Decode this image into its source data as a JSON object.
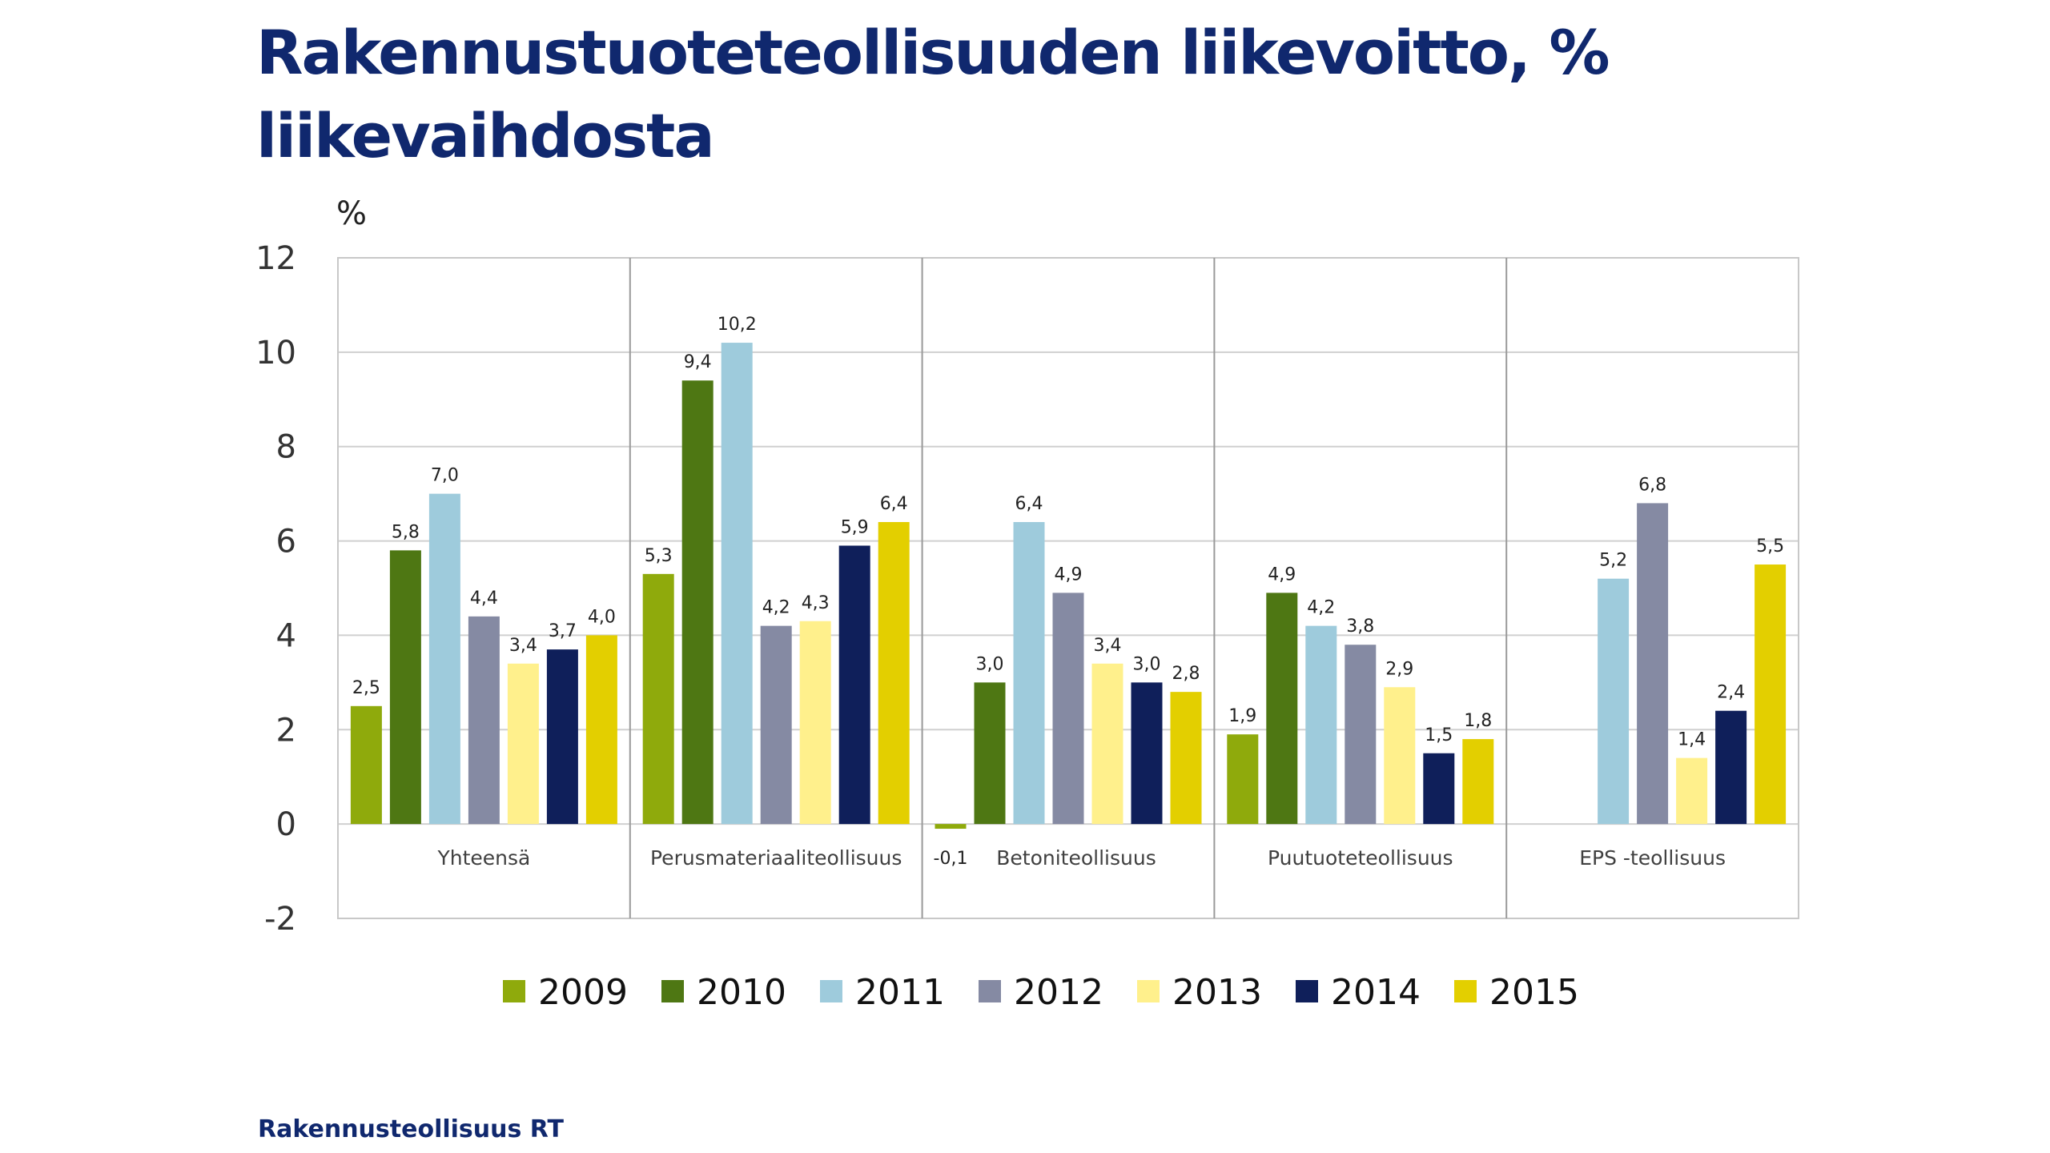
{
  "page": {
    "title": "Rakennustuoteteollisuuden liikevoitto, % liikevaihdosta",
    "footer": "Rakennusteollisuus RT"
  },
  "chart_data": {
    "type": "bar",
    "title": "Rakennustuoteteollisuuden liikevoitto, % liikevaihdosta",
    "ylabel": "%",
    "xlabel": "",
    "ylim": [
      -2,
      12
    ],
    "yticks": [
      "12",
      "10",
      "8",
      "6",
      "4",
      "2",
      "0",
      "-2"
    ],
    "ytick_values": [
      12,
      10,
      8,
      6,
      4,
      2,
      0,
      -2
    ],
    "grid": true,
    "legend": "bottom",
    "categories": [
      "Yhteensä",
      "Perusmateriaaliteollisuus",
      "Betoniteollisuus",
      "Puutuoteteollisuus",
      "EPS -teollisuus"
    ],
    "series": [
      {
        "name": "2009",
        "color": "#8faa0c",
        "values": [
          2.5,
          5.3,
          -0.1,
          1.9,
          null
        ],
        "labels": [
          "2,5",
          "5,3",
          "-0,1",
          "1,9",
          ""
        ]
      },
      {
        "name": "2010",
        "color": "#4e7713",
        "values": [
          5.8,
          9.4,
          3.0,
          4.9,
          null
        ],
        "labels": [
          "5,8",
          "9,4",
          "3,0",
          "4,9",
          ""
        ]
      },
      {
        "name": "2011",
        "color": "#9ecbdc",
        "values": [
          7.0,
          10.2,
          6.4,
          4.2,
          5.2
        ],
        "labels": [
          "7,0",
          "10,2",
          "6,4",
          "4,2",
          "5,2"
        ]
      },
      {
        "name": "2012",
        "color": "#858aa3",
        "values": [
          4.4,
          4.2,
          4.9,
          3.8,
          6.8
        ],
        "labels": [
          "4,4",
          "4,2",
          "4,9",
          "3,8",
          "6,8"
        ]
      },
      {
        "name": "2013",
        "color": "#fff08c",
        "values": [
          3.4,
          4.3,
          3.4,
          2.9,
          1.4
        ],
        "labels": [
          "3,4",
          "4,3",
          "3,4",
          "2,9",
          "1,4"
        ]
      },
      {
        "name": "2014",
        "color": "#0f1f5a",
        "values": [
          3.7,
          5.9,
          3.0,
          1.5,
          2.4
        ],
        "labels": [
          "3,7",
          "5,9",
          "3,0",
          "1,5",
          "2,4"
        ]
      },
      {
        "name": "2015",
        "color": "#e3cf00",
        "values": [
          4.0,
          6.4,
          2.8,
          1.8,
          5.5
        ],
        "labels": [
          "4,0",
          "6,4",
          "2,8",
          "1,8",
          "5,5"
        ]
      }
    ]
  }
}
